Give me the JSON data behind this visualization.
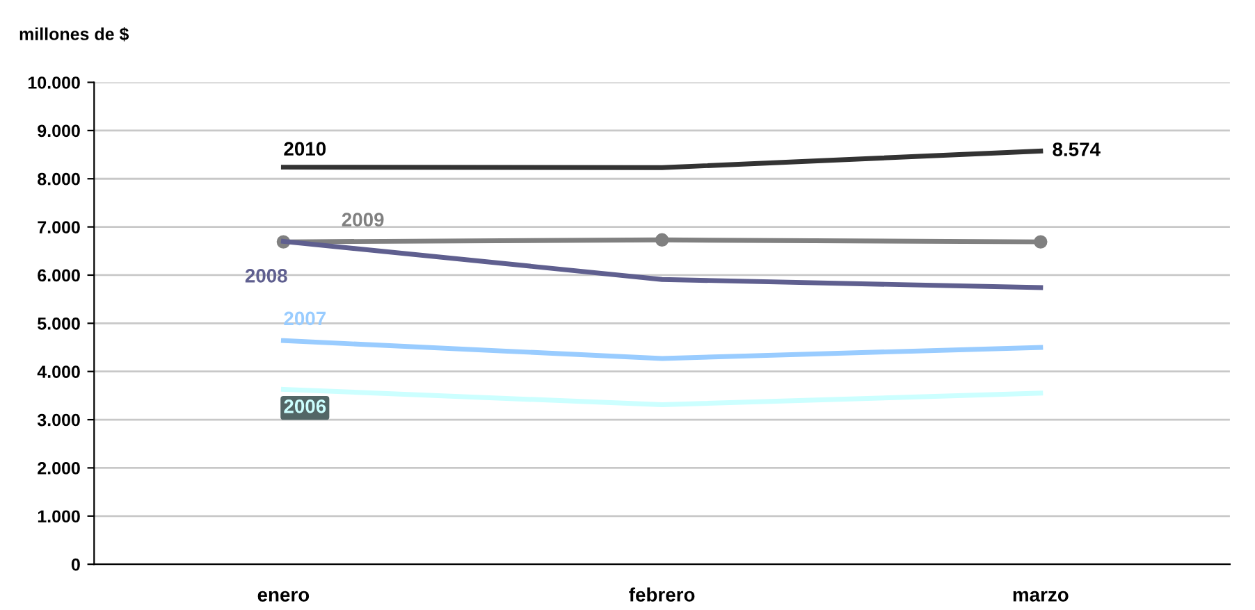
{
  "chart_data": {
    "type": "line",
    "ylabel": "millones de $",
    "categories": [
      "enero",
      "febrero",
      "marzo"
    ],
    "series": [
      {
        "name": "2010",
        "color": "#333333",
        "values": [
          8240,
          8230,
          8574
        ],
        "value_labels": [
          null,
          null,
          "8.574"
        ],
        "marker": "none"
      },
      {
        "name": "2009",
        "color": "#808080",
        "values": [
          6690,
          6730,
          6690
        ],
        "marker": "circle"
      },
      {
        "name": "2008",
        "color": "#5f5f8f",
        "values": [
          6700,
          5910,
          5740
        ],
        "marker": "none"
      },
      {
        "name": "2007",
        "color": "#99ccff",
        "values": [
          4640,
          4270,
          4500
        ],
        "marker": "none"
      },
      {
        "name": "2006",
        "color": "#ccffff",
        "values": [
          3630,
          3310,
          3550
        ],
        "marker": "none"
      }
    ],
    "ylim": [
      0,
      10000
    ],
    "yticks": [
      0,
      {
        "value": 1000,
        "label": "1.000"
      },
      {
        "value": 2000,
        "label": "2.000"
      },
      {
        "value": 3000,
        "label": "3.000"
      },
      {
        "value": 4000,
        "label": "4.000"
      },
      {
        "value": 5000,
        "label": "5.000"
      },
      {
        "value": 6000,
        "label": "6.000"
      },
      {
        "value": 7000,
        "label": "7.000"
      },
      {
        "value": 8000,
        "label": "8.000"
      },
      {
        "value": 9000,
        "label": "9.000"
      },
      {
        "value": 10000,
        "label": "10.000"
      }
    ],
    "grid": "y",
    "legend": false,
    "line_style": "solid"
  }
}
